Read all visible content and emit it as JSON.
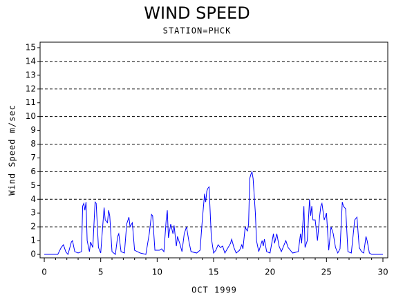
{
  "chart_data": {
    "type": "line",
    "title": "WIND SPEED",
    "subtitle": "STATION=PHCK",
    "x_label": "OCT 1999",
    "y_label": "Wind Speed m/sec",
    "x": [
      0,
      1.2,
      1.5,
      1.7,
      1.9,
      2.1,
      2.4,
      2.5,
      2.7,
      3.0,
      3.3,
      3.4,
      3.5,
      3.6,
      3.7,
      3.8,
      4.0,
      4.1,
      4.3,
      4.5,
      4.6,
      4.8,
      5.0,
      5.3,
      5.4,
      5.6,
      5.7,
      5.8,
      6.0,
      6.3,
      6.5,
      6.6,
      6.8,
      7.1,
      7.3,
      7.5,
      7.6,
      7.8,
      8.0,
      8.5,
      9.0,
      9.3,
      9.5,
      9.6,
      9.8,
      10.2,
      10.4,
      10.6,
      10.8,
      10.9,
      11.0,
      11.2,
      11.4,
      11.5,
      11.7,
      11.8,
      12.0,
      12.2,
      12.4,
      12.6,
      12.8,
      13.0,
      13.5,
      13.8,
      14.0,
      14.2,
      14.3,
      14.4,
      14.5,
      14.6,
      14.8,
      15.0,
      15.2,
      15.4,
      15.6,
      15.8,
      16.0,
      16.5,
      16.6,
      16.8,
      17.0,
      17.3,
      17.5,
      17.6,
      17.8,
      17.9,
      18.0,
      18.1,
      18.2,
      18.3,
      18.4,
      18.5,
      18.7,
      18.8,
      19.0,
      19.3,
      19.4,
      19.5,
      19.7,
      20.0,
      20.3,
      20.4,
      20.6,
      20.8,
      21.0,
      21.4,
      21.6,
      22.0,
      22.5,
      22.7,
      22.8,
      23.0,
      23.1,
      23.3,
      23.5,
      23.6,
      23.7,
      23.8,
      24.0,
      24.2,
      24.4,
      24.5,
      24.6,
      24.8,
      25.0,
      25.2,
      25.4,
      25.6,
      25.8,
      26.0,
      26.2,
      26.4,
      26.5,
      26.7,
      26.9,
      27.2,
      27.5,
      27.7,
      27.9,
      28.1,
      28.3,
      28.5,
      28.6,
      28.8,
      29.0,
      30.0
    ],
    "series": [
      {
        "color": "#0000ff",
        "values": [
          0,
          0,
          0.5,
          0.7,
          0.2,
          0,
          0.9,
          1.0,
          0.2,
          0.1,
          0.2,
          3.5,
          3.7,
          3.2,
          3.8,
          1.0,
          0.2,
          0.9,
          0.5,
          3.8,
          3.7,
          0.5,
          0.1,
          3.4,
          2.5,
          2.3,
          3.2,
          2.8,
          0.2,
          0,
          1.3,
          1.5,
          0.2,
          0.1,
          2.2,
          2.7,
          2.0,
          2.3,
          0.3,
          0.1,
          0,
          1.5,
          2.9,
          2.8,
          0.3,
          0.3,
          0.4,
          0.2,
          2.5,
          3.2,
          1.2,
          2.2,
          1.5,
          2.1,
          0.6,
          1.3,
          0.8,
          0.2,
          1.5,
          2.0,
          1.0,
          0.2,
          0.1,
          0.3,
          2.5,
          4.4,
          3.8,
          4.6,
          4.8,
          4.9,
          1.2,
          0.1,
          0.3,
          0.7,
          0.5,
          0.6,
          0.1,
          0.8,
          1.1,
          0.5,
          0.1,
          0.3,
          0.7,
          0.4,
          2.0,
          1.8,
          1.7,
          2.2,
          5.5,
          5.8,
          6.0,
          5.5,
          3.0,
          1.0,
          0.2,
          1.0,
          0.6,
          1.1,
          0.2,
          0.1,
          1.5,
          0.8,
          1.5,
          0.6,
          0.2,
          1.0,
          0.5,
          0.1,
          0.2,
          1.5,
          0.8,
          3.5,
          0.5,
          1.0,
          4.0,
          2.8,
          3.5,
          2.5,
          2.5,
          1.0,
          2.8,
          3.5,
          3.7,
          2.5,
          3.0,
          0.3,
          2.0,
          1.5,
          0.5,
          0.1,
          0.4,
          3.8,
          3.5,
          3.3,
          0.2,
          0.1,
          2.5,
          2.7,
          0.5,
          0.2,
          0.1,
          1.3,
          1.0,
          0.1,
          0,
          0
        ]
      }
    ],
    "xlim": [
      -0.37,
      30.43
    ],
    "xticks": [
      0,
      5,
      10,
      15,
      20,
      25,
      30
    ],
    "ylim": [
      -0.25,
      15.4
    ],
    "yticks": [
      0,
      1,
      2,
      3,
      4,
      5,
      6,
      7,
      8,
      9,
      10,
      11,
      12,
      13,
      14,
      15
    ],
    "grid": true
  }
}
